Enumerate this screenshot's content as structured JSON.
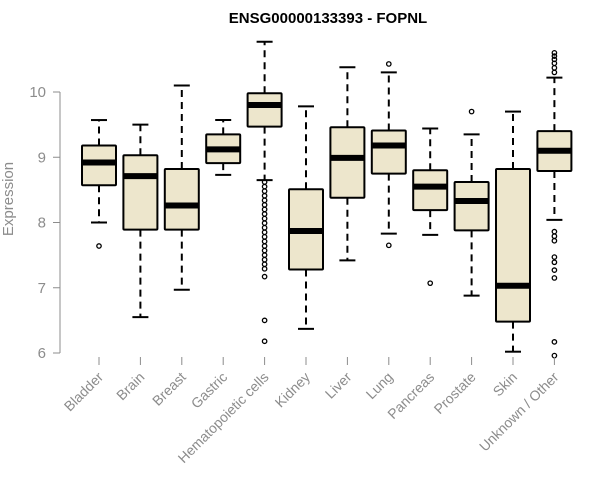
{
  "chart_data": {
    "type": "box",
    "title": "ENSG00000133393 - FOPNL",
    "xlabel": "",
    "ylabel": "Expression",
    "ylim": [
      5.95,
      10.9
    ],
    "yticks": [
      6,
      7,
      8,
      9,
      10
    ],
    "grid": false,
    "box_fill": "#ede6cc",
    "median_color": "#000000",
    "categories": [
      "Bladder",
      "Brain",
      "Breast",
      "Gastric",
      "Hematopoietic cells",
      "Kidney",
      "Liver",
      "Lung",
      "Pancreas",
      "Prostate",
      "Skin",
      "Unknown / Other"
    ],
    "boxes": [
      {
        "category": "Bladder",
        "whisker_low": 8.0,
        "q1": 8.57,
        "median": 8.92,
        "q3": 9.18,
        "whisker_high": 9.57,
        "outliers": [
          7.64
        ]
      },
      {
        "category": "Brain",
        "whisker_low": 6.55,
        "q1": 7.89,
        "median": 8.71,
        "q3": 9.03,
        "whisker_high": 9.5,
        "outliers": []
      },
      {
        "category": "Breast",
        "whisker_low": 6.97,
        "q1": 7.89,
        "median": 8.26,
        "q3": 8.82,
        "whisker_high": 10.1,
        "outliers": []
      },
      {
        "category": "Gastric",
        "whisker_low": 8.73,
        "q1": 8.91,
        "median": 9.12,
        "q3": 9.35,
        "whisker_high": 9.57,
        "outliers": []
      },
      {
        "category": "Hematopoietic cells",
        "whisker_low": 8.65,
        "q1": 9.47,
        "median": 9.8,
        "q3": 9.98,
        "whisker_high": 10.77,
        "outliers": [
          8.62,
          8.55,
          8.48,
          8.41,
          8.34,
          8.27,
          8.2,
          8.13,
          8.06,
          7.99,
          7.92,
          7.85,
          7.78,
          7.71,
          7.64,
          7.57,
          7.5,
          7.43,
          7.36,
          7.29,
          7.17,
          6.5,
          6.18
        ]
      },
      {
        "category": "Kidney",
        "whisker_low": 6.37,
        "q1": 7.28,
        "median": 7.87,
        "q3": 8.51,
        "whisker_high": 9.78,
        "outliers": []
      },
      {
        "category": "Liver",
        "whisker_low": 7.42,
        "q1": 8.38,
        "median": 8.99,
        "q3": 9.46,
        "whisker_high": 10.38,
        "outliers": []
      },
      {
        "category": "Lung",
        "whisker_low": 7.83,
        "q1": 8.75,
        "median": 9.18,
        "q3": 9.41,
        "whisker_high": 10.3,
        "outliers": [
          10.43,
          7.65
        ]
      },
      {
        "category": "Pancreas",
        "whisker_low": 7.81,
        "q1": 8.19,
        "median": 8.55,
        "q3": 8.8,
        "whisker_high": 9.44,
        "outliers": [
          7.07
        ]
      },
      {
        "category": "Prostate",
        "whisker_low": 6.88,
        "q1": 7.88,
        "median": 8.33,
        "q3": 8.62,
        "whisker_high": 9.35,
        "outliers": [
          9.7
        ]
      },
      {
        "category": "Skin",
        "whisker_low": 6.02,
        "q1": 6.48,
        "median": 7.03,
        "q3": 8.82,
        "whisker_high": 9.7,
        "outliers": []
      },
      {
        "category": "Unknown / Other",
        "whisker_low": 8.04,
        "q1": 8.79,
        "median": 9.1,
        "q3": 9.4,
        "whisker_high": 10.22,
        "outliers": [
          10.6,
          10.55,
          10.5,
          10.44,
          10.37,
          10.3,
          7.86,
          7.79,
          7.72,
          7.47,
          7.39,
          7.27,
          7.15,
          6.17,
          5.96
        ]
      }
    ]
  }
}
